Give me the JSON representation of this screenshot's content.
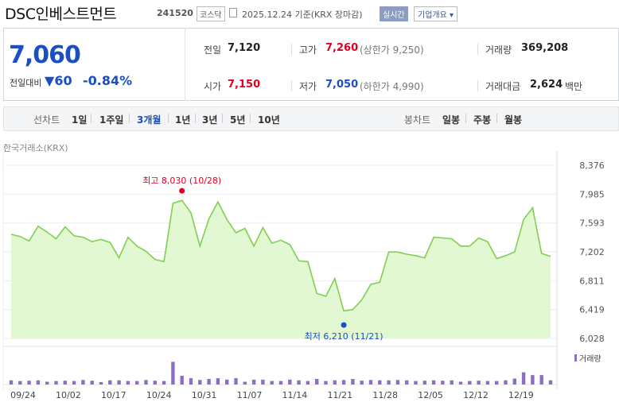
{
  "header": {
    "company": "DSC인베스트먼트",
    "code": "241520",
    "market_badge": "코스닥",
    "date_text": "2025.12.24 기준(KRX 장마감)",
    "realtime_label": "실시간",
    "company_info_label": "기업개요 ▾"
  },
  "quote": {
    "price": "7,060",
    "diff_label": "전일대비",
    "diff_arrow": "▼",
    "diff_value": "60",
    "diff_rate": "-0.84%",
    "prev_close_label": "전일",
    "prev_close": "7,120",
    "high_label": "고가",
    "high": "7,260",
    "upper_limit": "(상한가 9,250)",
    "volume_label": "거래량",
    "volume": "369,208",
    "open_label": "시가",
    "open": "7,150",
    "low_label": "저가",
    "low": "7,050",
    "lower_limit": "(하한가 4,990)",
    "amount_label": "거래대금",
    "amount": "2,624",
    "amount_unit": "백만"
  },
  "period": {
    "line_label": "선차트",
    "items": [
      "1일",
      "1주일",
      "3개월",
      "1년",
      "3년",
      "5년",
      "10년"
    ],
    "selected": "3개월",
    "candle_label": "봉차트",
    "candle_items": [
      "일봉",
      "주봉",
      "월봉"
    ]
  },
  "source_label": "한국거래소(KRX)",
  "colors": {
    "accent": "#1a4ec4",
    "up": "#e0001f",
    "line": "#7ed050",
    "fill": "#e2f8d3",
    "volume": "#8c6fc0"
  },
  "chart_data": {
    "type": "area",
    "yticks": [
      "8,376",
      "7,985",
      "7,593",
      "7,202",
      "6,811",
      "6,419",
      "6,028"
    ],
    "ylim": [
      6028,
      8376
    ],
    "xticks": [
      "09/24",
      "10/02",
      "10/17",
      "10/24",
      "10/31",
      "11/07",
      "11/14",
      "11/21",
      "11/28",
      "12/05",
      "12/12",
      "12/19"
    ],
    "max_label": "최고 8,030 (10/28)",
    "min_label": "최저 6,210 (11/21)",
    "legend_volume": "거래량",
    "values": [
      7440,
      7410,
      7350,
      7550,
      7470,
      7380,
      7540,
      7420,
      7400,
      7340,
      7370,
      7330,
      7120,
      7400,
      7280,
      7210,
      7100,
      7070,
      7860,
      7900,
      7730,
      7280,
      7650,
      7880,
      7640,
      7460,
      7520,
      7280,
      7530,
      7320,
      7360,
      7300,
      7080,
      7070,
      6640,
      6600,
      6840,
      6400,
      6420,
      6550,
      6760,
      6790,
      7200,
      7200,
      7170,
      7150,
      7120,
      7400,
      7390,
      7380,
      7280,
      7280,
      7390,
      7340,
      7110,
      7150,
      7200,
      7640,
      7800,
      7180,
      7140
    ],
    "volumes": [
      0.12,
      0.1,
      0.11,
      0.12,
      0.08,
      0.1,
      0.11,
      0.1,
      0.13,
      0.11,
      0.07,
      0.12,
      0.12,
      0.1,
      0.1,
      0.13,
      0.11,
      0.1,
      0.65,
      0.25,
      0.18,
      0.13,
      0.16,
      0.18,
      0.14,
      0.18,
      0.08,
      0.14,
      0.14,
      0.1,
      0.1,
      0.14,
      0.12,
      0.1,
      0.16,
      0.1,
      0.12,
      0.13,
      0.16,
      0.11,
      0.13,
      0.12,
      0.12,
      0.13,
      0.12,
      0.1,
      0.11,
      0.12,
      0.11,
      0.12,
      0.08,
      0.1,
      0.11,
      0.1,
      0.1,
      0.12,
      0.17,
      0.35,
      0.27,
      0.27,
      0.12
    ]
  }
}
